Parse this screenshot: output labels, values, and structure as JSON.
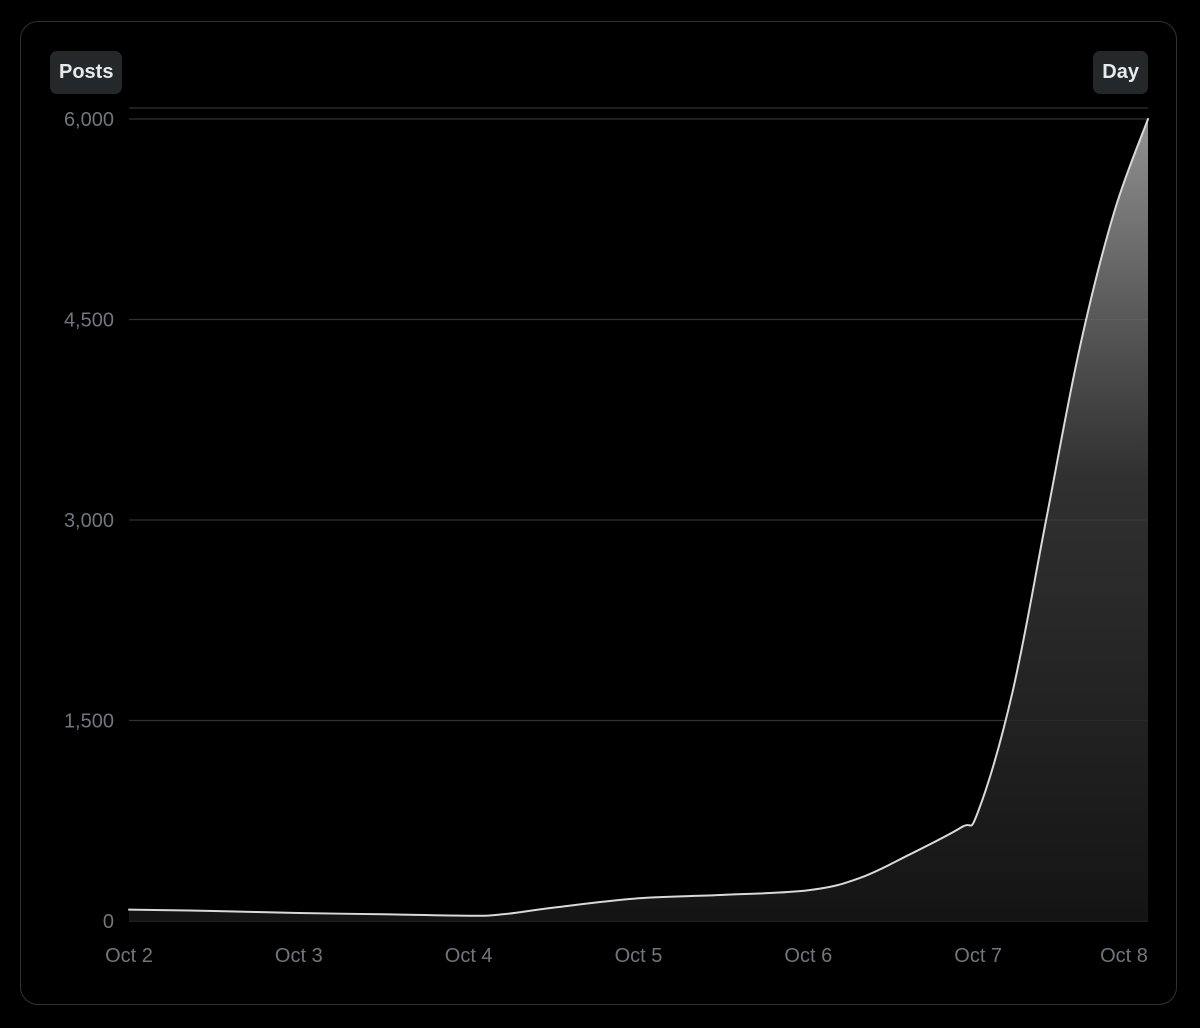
{
  "header": {
    "metric_label": "Posts",
    "interval_label": "Day"
  },
  "colors": {
    "background": "#000000",
    "card_border": "#2f3336",
    "grid": "#2f3336",
    "line": "#d9d9d9",
    "tick_text": "#71767b",
    "pill_bg": "#25282b",
    "pill_text": "#e7e9ea"
  },
  "chart_data": {
    "type": "area",
    "title": "",
    "xlabel": "",
    "ylabel": "",
    "categories": [
      "Oct 2",
      "Oct 3",
      "Oct 4",
      "Oct 5",
      "Oct 6",
      "Oct 7",
      "Oct 8"
    ],
    "series": [
      {
        "x": [
          0,
          0.5,
          1,
          1.5,
          2,
          2.2,
          2.5,
          3,
          3.5,
          4,
          4.3,
          4.6,
          4.9,
          5.0,
          5.2,
          5.4,
          5.6,
          5.8,
          6.0
        ],
        "values": [
          85,
          75,
          60,
          50,
          40,
          50,
          100,
          170,
          195,
          230,
          320,
          500,
          700,
          820,
          1700,
          3000,
          4300,
          5300,
          6000
        ]
      }
    ],
    "y_ticks": [
      {
        "value": 0,
        "label": "0"
      },
      {
        "value": 1500,
        "label": "1,500"
      },
      {
        "value": 3000,
        "label": "3,000"
      },
      {
        "value": 4500,
        "label": "4,500"
      },
      {
        "value": 6000,
        "label": "6,000"
      }
    ],
    "ylim": [
      0,
      6000
    ],
    "grid": true,
    "legend": "none"
  }
}
